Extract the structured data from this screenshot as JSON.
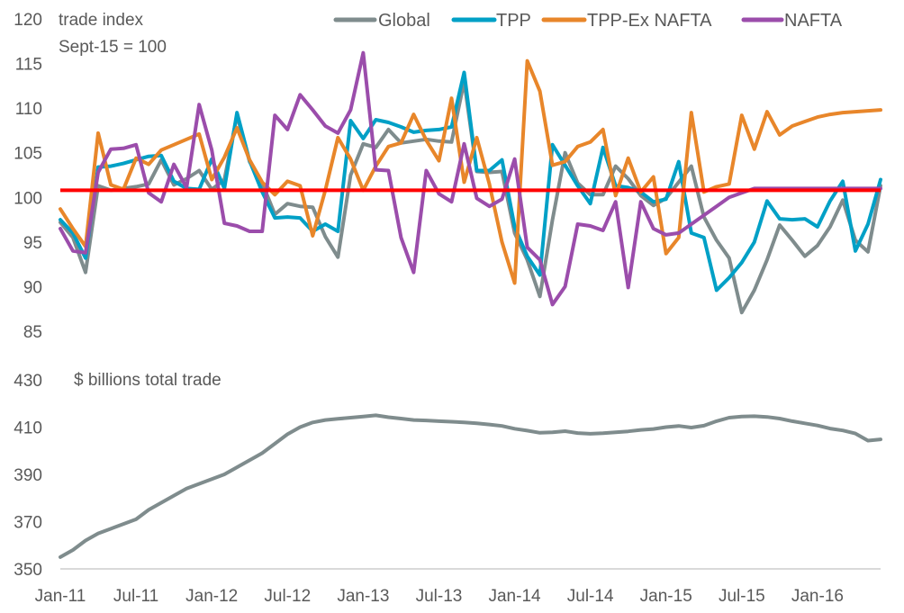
{
  "chart_data": [
    {
      "type": "line",
      "panel": "top",
      "title": "trade index",
      "subtitle": "Sept-15 = 100",
      "ylim": [
        85,
        120
      ],
      "yticks": [
        85,
        90,
        95,
        100,
        105,
        110,
        115,
        120
      ],
      "reference_line": {
        "value": 100.8,
        "color": "#ff0000"
      },
      "x": [
        "Jan-11",
        "Feb-11",
        "Mar-11",
        "Apr-11",
        "May-11",
        "Jun-11",
        "Jul-11",
        "Aug-11",
        "Sep-11",
        "Oct-11",
        "Nov-11",
        "Dec-11",
        "Jan-12",
        "Feb-12",
        "Mar-12",
        "Apr-12",
        "May-12",
        "Jun-12",
        "Jul-12",
        "Aug-12",
        "Sep-12",
        "Oct-12",
        "Nov-12",
        "Dec-12",
        "Jan-13",
        "Feb-13",
        "Mar-13",
        "Apr-13",
        "May-13",
        "Jun-13",
        "Jul-13",
        "Aug-13",
        "Sep-13",
        "Oct-13",
        "Nov-13",
        "Dec-13",
        "Jan-14",
        "Feb-14",
        "Mar-14",
        "Apr-14",
        "May-14",
        "Jun-14",
        "Jul-14",
        "Aug-14",
        "Sep-14",
        "Oct-14",
        "Nov-14",
        "Dec-14",
        "Jan-15",
        "Feb-15",
        "Mar-15",
        "Apr-15",
        "May-15",
        "Jun-15",
        "Jul-15",
        "Aug-15",
        "Sep-15",
        "Oct-15",
        "Nov-15",
        "Dec-15",
        "Jan-16",
        "Feb-16",
        "Mar-16",
        "Apr-16",
        "May-16",
        "Jun-16"
      ],
      "series": [
        {
          "name": "Global",
          "color": "#7f8c8d",
          "values": [
            97.2,
            95.5,
            91.6,
            101.3,
            100.8,
            101,
            101.2,
            101.5,
            104.2,
            101.4,
            102.1,
            103,
            100.9,
            102,
            109.2,
            104,
            101.6,
            98.1,
            99.3,
            99,
            98.9,
            95.6,
            93.3,
            102.5,
            106,
            105.6,
            107.6,
            106.1,
            106.3,
            106.5,
            106.3,
            106.2,
            113,
            102.9,
            102.8,
            102.9,
            96,
            93,
            88.9,
            97.5,
            105,
            101.6,
            100.3,
            100.3,
            103.5,
            102.1,
            100.2,
            99.1,
            99.9,
            101.7,
            103.5,
            97.8,
            95.2,
            93.2,
            87.1,
            89.6,
            93,
            96.9,
            95.2,
            93.4,
            94.6,
            96.7,
            99.7,
            95.2,
            93.9,
            101.3
          ]
        },
        {
          "name": "TPP",
          "color": "#00a0c6",
          "values": [
            97.5,
            96,
            93.2,
            103.4,
            103.5,
            103.8,
            104.2,
            104.6,
            104.7,
            101.8,
            101,
            100.9,
            104.3,
            101,
            109.5,
            104.1,
            100.6,
            97.7,
            97.8,
            97.7,
            96.2,
            97,
            96.2,
            108.6,
            106.6,
            108.7,
            108.4,
            107.9,
            107.3,
            107.5,
            107.6,
            107.9,
            114,
            103,
            103,
            104.2,
            96.7,
            93.4,
            91.3,
            105.9,
            103.6,
            101.3,
            99.3,
            105.6,
            101.3,
            101.1,
            100.6,
            99.5,
            99.8,
            104,
            96,
            95.5,
            89.6,
            91,
            92.7,
            95,
            99.6,
            97.6,
            97.5,
            97.6,
            96.7,
            99.6,
            101.8,
            94,
            97,
            102
          ]
        },
        {
          "name": "TPP-Ex NAFTA",
          "color": "#e8862a",
          "values": [
            98.7,
            96.5,
            94.5,
            107.2,
            101.4,
            100.9,
            104.4,
            103.7,
            105.3,
            105.9,
            106.5,
            107.1,
            102,
            104.5,
            107.8,
            104.2,
            101.7,
            100.3,
            101.8,
            101.3,
            95.7,
            100.8,
            106.7,
            104.3,
            100.8,
            103.5,
            105.7,
            106.1,
            109.3,
            106.4,
            104.1,
            111.1,
            101.7,
            106.7,
            101.5,
            95,
            90.4,
            115.3,
            111.9,
            103.6,
            104,
            105.7,
            106.2,
            107.6,
            100.2,
            104.4,
            100.6,
            102.3,
            93.7,
            95.5,
            109.5,
            100.6,
            101.2,
            101.5,
            109.2,
            105.4,
            109.6,
            107,
            108,
            108.5,
            109,
            109.3,
            109.5,
            109.6,
            109.7,
            109.8
          ]
        },
        {
          "name": "NAFTA",
          "color": "#9b4dab",
          "values": [
            96.5,
            94,
            93.8,
            102.8,
            105.4,
            105.5,
            105.9,
            100.5,
            99.5,
            103.7,
            101.1,
            110.4,
            105.3,
            97.1,
            96.8,
            96.2,
            96.2,
            109.2,
            107.6,
            111.5,
            109.8,
            108,
            107.2,
            109.8,
            116.2,
            103.1,
            103,
            95.5,
            91.6,
            103,
            100.4,
            99.5,
            106,
            99.9,
            99,
            99.8,
            104.3,
            94.4,
            93,
            88,
            90,
            97,
            96.8,
            96.3,
            99.5,
            89.9,
            99.5,
            96.5,
            95.8,
            96,
            97,
            98,
            99,
            100,
            100.5,
            101,
            101,
            101,
            101,
            101,
            101,
            101,
            101,
            101,
            101,
            101
          ]
        }
      ]
    },
    {
      "type": "line",
      "panel": "bottom",
      "title": "$ billions total trade",
      "ylim": [
        350,
        430
      ],
      "yticks": [
        350,
        370,
        390,
        410,
        430
      ],
      "x_tick_labels": [
        "Jan-11",
        "Jul-11",
        "Jan-12",
        "Jul-12",
        "Jan-13",
        "Jul-13",
        "Jan-14",
        "Jul-14",
        "Jan-15",
        "Jul-15",
        "Jan-16"
      ],
      "series": [
        {
          "name": "Global",
          "color": "#7f8c8d",
          "values": [
            355,
            358,
            362,
            365,
            367,
            369,
            371,
            375,
            378,
            381,
            384,
            386,
            388,
            390,
            393,
            396,
            399,
            403,
            407,
            410,
            412,
            413,
            413.5,
            414,
            414.5,
            415,
            414.2,
            413.6,
            413,
            412.8,
            412.5,
            412.3,
            412,
            411.6,
            411.1,
            410.5,
            409.3,
            408.5,
            407.6,
            407.8,
            408.3,
            407.5,
            407.2,
            407.4,
            407.8,
            408.2,
            408.8,
            409.2,
            410,
            410.5,
            409.8,
            410.6,
            412.5,
            414,
            414.5,
            414.6,
            414.3,
            413.6,
            412.5,
            411.6,
            410.7,
            409.4,
            408.6,
            407.3,
            404.3,
            404.8
          ]
        }
      ]
    }
  ],
  "legend": [
    {
      "name": "Global",
      "color": "#7f8c8d"
    },
    {
      "name": "TPP",
      "color": "#00a0c6"
    },
    {
      "name": "TPP-Ex NAFTA",
      "color": "#e8862a"
    },
    {
      "name": "NAFTA",
      "color": "#9b4dab"
    }
  ]
}
